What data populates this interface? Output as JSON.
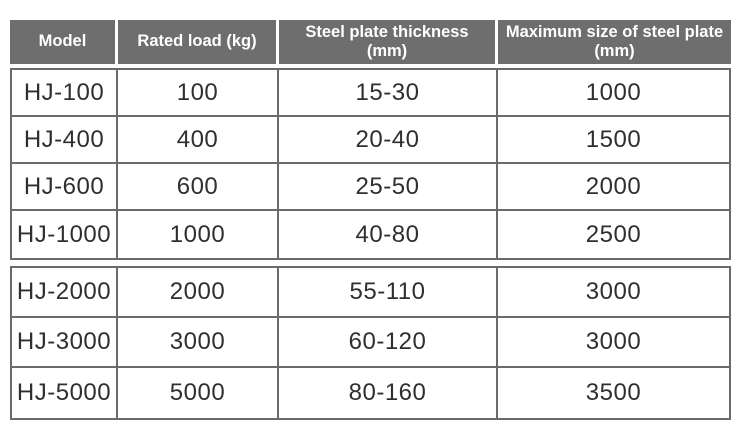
{
  "colors": {
    "header_background": "#6e6e6e",
    "header_text": "#ffffff",
    "grid_border": "#6a6a6a",
    "cell_text": "#2f2f2f",
    "page_background": "#ffffff"
  },
  "table": {
    "headers": [
      "Model",
      "Rated load (kg)",
      "Steel plate thickness\n(mm)",
      "Maximum size of steel plate\n(mm)"
    ],
    "sections": [
      {
        "rows": [
          [
            "HJ-100",
            "100",
            "15-30",
            "1000"
          ],
          [
            "HJ-400",
            "400",
            "20-40",
            "1500"
          ],
          [
            "HJ-600",
            "600",
            "25-50",
            "2000"
          ],
          [
            "HJ-1000",
            "1000",
            "40-80",
            "2500"
          ]
        ]
      },
      {
        "rows": [
          [
            "HJ-2000",
            "2000",
            "55-110",
            "3000"
          ],
          [
            "HJ-3000",
            "3000",
            "60-120",
            "3000"
          ],
          [
            "HJ-5000",
            "5000",
            "80-160",
            "3500"
          ]
        ]
      }
    ]
  }
}
